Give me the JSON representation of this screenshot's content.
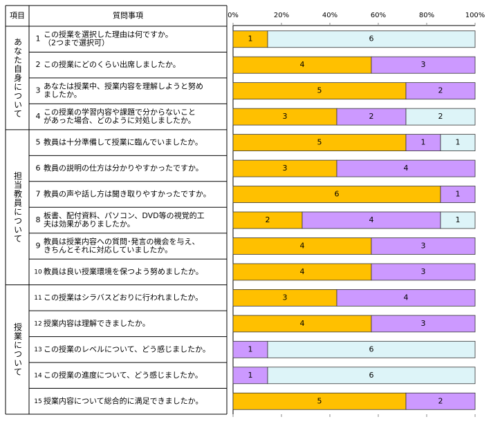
{
  "table": {
    "header": [
      "項目",
      "質問事項"
    ],
    "groups": [
      {
        "label": "あなた自身について",
        "rows": 4
      },
      {
        "label": "担当教員について",
        "rows": 6
      },
      {
        "label": "授業について",
        "rows": 5
      }
    ],
    "questions": [
      [
        "この授業を選択した理由は何ですか。",
        "（2つまで選択可）"
      ],
      [
        "この授業にどのくらい出席しましたか。"
      ],
      [
        "あなたは授業中、授業内容を理解しようと努め",
        "ましたか。"
      ],
      [
        "この授業の学習内容や課題で分からないこと",
        "があった場合、どのように対処しましたか。"
      ],
      [
        "教員は十分準備して授業に臨んでいましたか。"
      ],
      [
        "教員の説明の仕方は分かりやすかったですか。"
      ],
      [
        "教員の声や話し方は聞き取りやすかったですか。"
      ],
      [
        "板書、配付資料、パソコン、DVD等の視覚的工",
        "夫は効果がありましたか。"
      ],
      [
        "教員は授業内容への質問･発言の機会を与え、",
        "きちんとそれに対応していましたか。"
      ],
      [
        "教員は良い授業環境を保つよう努めましたか。"
      ],
      [
        "この授業はシラバスどおりに行われましたか。"
      ],
      [
        "授業内容は理解できましたか。"
      ],
      [
        "この授業のレベルについて、どう感じましたか。"
      ],
      [
        "この授業の進度について、どう感じましたか。"
      ],
      [
        "授業内容について総合的に満足できましたか。"
      ]
    ]
  },
  "chart_data": {
    "type": "bar",
    "stacking": "percent",
    "categories": [
      1,
      2,
      3,
      4,
      5,
      6,
      7,
      8,
      9,
      10,
      11,
      12,
      13,
      14,
      15
    ],
    "xlim": [
      0,
      100
    ],
    "xticks": [
      {
        "value": 0,
        "label": "0%"
      },
      {
        "value": 20,
        "label": "20%"
      },
      {
        "value": 40,
        "label": "40%"
      },
      {
        "value": 60,
        "label": "60%"
      },
      {
        "value": 80,
        "label": "80%"
      },
      {
        "value": 100,
        "label": "100%"
      }
    ],
    "series": [
      {
        "color": "#ffc000",
        "values": [
          1,
          4,
          5,
          3,
          5,
          3,
          6,
          2,
          4,
          4,
          3,
          4,
          0,
          0,
          5
        ]
      },
      {
        "color": "#cc99ff",
        "values": [
          0,
          3,
          2,
          2,
          1,
          4,
          1,
          4,
          3,
          3,
          4,
          3,
          1,
          1,
          2
        ]
      },
      {
        "color": "#ddf4f8",
        "values": [
          6,
          0,
          0,
          2,
          1,
          0,
          0,
          1,
          0,
          0,
          0,
          0,
          6,
          6,
          0
        ]
      }
    ]
  }
}
